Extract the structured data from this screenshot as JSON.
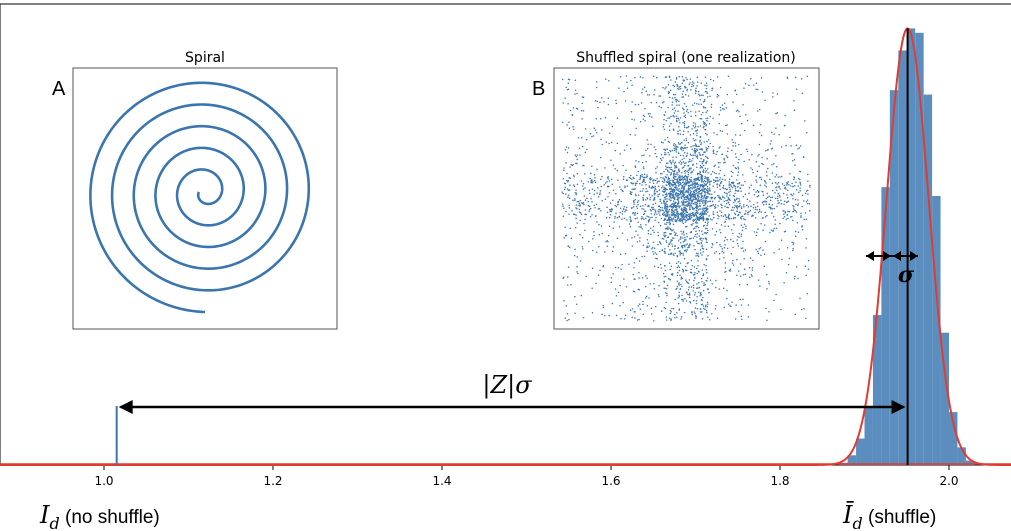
{
  "chart_data": [
    {
      "type": "histogram",
      "title": "",
      "xlabel": "",
      "ylabel": "",
      "xlim": [
        0.9,
        2.1
      ],
      "ylim": [
        0,
        1.0
      ],
      "xticks": [
        "1.0",
        "1.2",
        "1.4",
        "1.6",
        "1.8",
        "2.0"
      ],
      "grid": false,
      "bars": {
        "color": "#5b8ebf",
        "edges": [
          1.87,
          1.88,
          1.89,
          1.9,
          1.91,
          1.92,
          1.93,
          1.94,
          1.95,
          1.96,
          1.97,
          1.98,
          1.99,
          2.0,
          2.01,
          2.02,
          2.03
        ],
        "values": [
          0.005,
          0.022,
          0.06,
          0.13,
          0.34,
          0.63,
          0.85,
          0.94,
          0.99,
          0.98,
          0.84,
          0.61,
          0.3,
          0.12,
          0.04,
          0.01
        ]
      },
      "gaussian_fit": {
        "mean": 1.951,
        "sigma": 0.025,
        "peak": 0.99,
        "color": "#e03c31"
      },
      "no_shuffle_value": 1.015,
      "mean_line": 1.951,
      "annotations": {
        "z_sigma": "|Z|σ",
        "sigma": "σ",
        "left_symbol": "I",
        "left_sub": "d",
        "left_text": " (no shuffle)",
        "right_symbol": "Ī",
        "right_sub": "d",
        "right_text": " (shuffle)"
      },
      "line_color": "#1f1f1f"
    },
    {
      "type": "scatter",
      "panel_label": "A",
      "title": "Spiral",
      "turns": 5.25,
      "r_max": 1.0,
      "color": "#3a75b0"
    },
    {
      "type": "scatter",
      "panel_label": "B",
      "title": "Shuffled spiral (one realization)",
      "n_points": 3400,
      "color": "#3a75b0"
    }
  ]
}
